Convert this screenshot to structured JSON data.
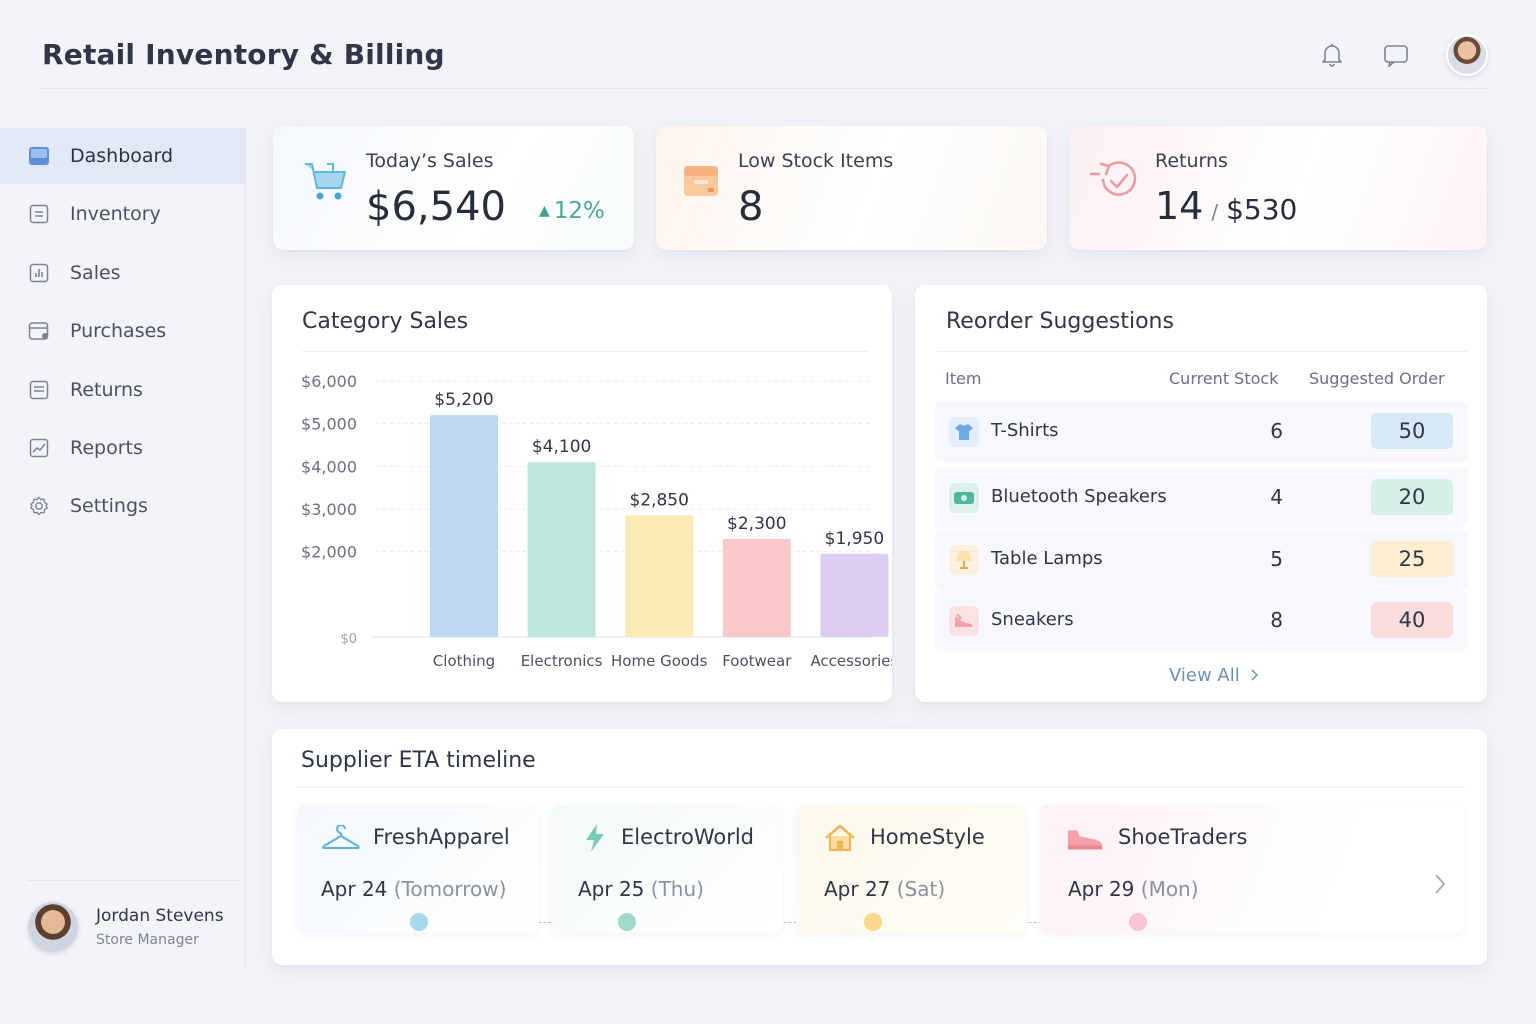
{
  "app": {
    "title": "Retail Inventory & Billing"
  },
  "header": {
    "icons": [
      "bell-icon",
      "message-icon",
      "user-avatar"
    ]
  },
  "sidebar": {
    "items": [
      {
        "label": "Dashboard",
        "icon": "dashboard-icon",
        "active": true
      },
      {
        "label": "Inventory",
        "icon": "inventory-icon",
        "active": false
      },
      {
        "label": "Sales",
        "icon": "sales-icon",
        "active": false
      },
      {
        "label": "Purchases",
        "icon": "purchases-icon",
        "active": false
      },
      {
        "label": "Returns",
        "icon": "returns-icon",
        "active": false
      },
      {
        "label": "Reports",
        "icon": "reports-icon",
        "active": false
      },
      {
        "label": "Settings",
        "icon": "gear-icon",
        "active": false
      }
    ],
    "user": {
      "name": "Jordan Stevens",
      "role": "Store Manager"
    }
  },
  "kpis": {
    "sales": {
      "title": "Today’s Sales",
      "value": "$6,540",
      "change": "12%",
      "change_color": "#4aa89a",
      "icon": "shopping-cart-icon"
    },
    "low_stock": {
      "title": "Low Stock Items",
      "value": "8",
      "icon": "box-icon"
    },
    "returns": {
      "title": "Returns",
      "count": "14",
      "separator": "/",
      "amount": "$530",
      "icon": "return-check-icon"
    }
  },
  "category_sales": {
    "title": "Category Sales"
  },
  "chart_data": {
    "type": "bar",
    "title": "Category Sales",
    "categories": [
      "Clothing",
      "Electronics",
      "Home Goods",
      "Footwear",
      "Accessories"
    ],
    "values": [
      5200,
      4100,
      2850,
      2300,
      1950
    ],
    "value_labels": [
      "$5,200",
      "$4,100",
      "$2,850",
      "$2,300",
      "$1,950"
    ],
    "colors": [
      "#bcd7f0",
      "#bfe6dc",
      "#fbe9b6",
      "#f9c9c9",
      "#dccdf2"
    ],
    "yticks": [
      "$6,000",
      "$5,000",
      "$4,000",
      "$3,000",
      "$2,000",
      "$0"
    ],
    "ytick_values": [
      6000,
      5000,
      4000,
      3000,
      2000,
      0
    ],
    "ylim": [
      0,
      6000
    ],
    "grid": true
  },
  "reorder": {
    "title": "Reorder Suggestions",
    "columns": [
      "Item",
      "Current Stock",
      "Suggested Order"
    ],
    "rows": [
      {
        "item": "T-Shirts",
        "stock": "6",
        "order": "50",
        "icon": "tshirt-icon",
        "icon_bg": "#e4eefa",
        "badge_bg": "#d7e8f8"
      },
      {
        "item": "Bluetooth Speakers",
        "stock": "4",
        "order": "20",
        "icon": "speaker-icon",
        "icon_bg": "#dcf1ec",
        "badge_bg": "#d6efe7"
      },
      {
        "item": "Table Lamps",
        "stock": "5",
        "order": "25",
        "icon": "lamp-icon",
        "icon_bg": "#fcf1dc",
        "badge_bg": "#fcefcf"
      },
      {
        "item": "Sneakers",
        "stock": "8",
        "order": "40",
        "icon": "sneaker-icon",
        "icon_bg": "#fbe3e3",
        "badge_bg": "#fbdcdc"
      }
    ],
    "view_all": "View All"
  },
  "timeline": {
    "title": "Supplier ETA timeline",
    "suppliers": [
      {
        "name": "FreshApparel",
        "date": "Apr 24",
        "note": "(Tomorrow)",
        "icon": "hanger-icon",
        "dot": "#a8d8ec"
      },
      {
        "name": "ElectroWorld",
        "date": "Apr 25",
        "note": "(Thu)",
        "icon": "lightning-icon",
        "dot": "#9fd9c9"
      },
      {
        "name": "HomeStyle",
        "date": "Apr 27",
        "note": "(Sat)",
        "icon": "house-icon",
        "dot": "#fbd98c"
      },
      {
        "name": "ShoeTraders",
        "date": "Apr 29",
        "note": "(Mon)",
        "icon": "shoe-icon",
        "dot": "#f8c6d2"
      }
    ]
  }
}
